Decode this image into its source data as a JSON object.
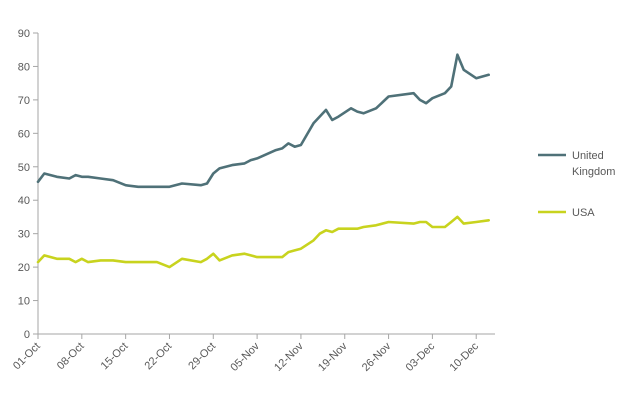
{
  "chart_data": {
    "type": "line",
    "title": "",
    "xlabel": "",
    "ylabel": "",
    "ylim": [
      0,
      90
    ],
    "yticks": [
      0,
      10,
      20,
      30,
      40,
      50,
      60,
      70,
      80,
      90
    ],
    "x_tick_labels": [
      "01-Oct",
      "08-Oct",
      "15-Oct",
      "22-Oct",
      "29-Oct",
      "05-Nov",
      "12-Nov",
      "19-Nov",
      "26-Nov",
      "03-Dec",
      "10-Dec"
    ],
    "grid": {
      "horizontal": false,
      "vertical": false
    },
    "legend_position": "right",
    "x": [
      "01-Oct",
      "02-Oct",
      "04-Oct",
      "06-Oct",
      "07-Oct",
      "08-Oct",
      "09-Oct",
      "11-Oct",
      "13-Oct",
      "15-Oct",
      "17-Oct",
      "20-Oct",
      "22-Oct",
      "24-Oct",
      "27-Oct",
      "28-Oct",
      "29-Oct",
      "30-Oct",
      "01-Nov",
      "03-Nov",
      "04-Nov",
      "05-Nov",
      "08-Nov",
      "09-Nov",
      "10-Nov",
      "11-Nov",
      "12-Nov",
      "14-Nov",
      "15-Nov",
      "16-Nov",
      "17-Nov",
      "18-Nov",
      "20-Nov",
      "21-Nov",
      "22-Nov",
      "24-Nov",
      "26-Nov",
      "30-Nov",
      "01-Dec",
      "02-Dec",
      "03-Dec",
      "05-Dec",
      "06-Dec",
      "07-Dec",
      "08-Dec",
      "10-Dec",
      "12-Dec"
    ],
    "series": [
      {
        "name": "United Kingdom",
        "color": "#4f7178",
        "values": [
          45.5,
          48,
          47,
          46.5,
          47.5,
          47,
          47,
          46.5,
          46,
          44.5,
          44,
          44,
          44,
          45,
          44.5,
          45,
          48,
          49.5,
          50.5,
          51,
          52,
          52.5,
          55,
          55.5,
          57,
          56,
          56.5,
          63,
          65,
          67,
          64,
          65,
          67.5,
          66.5,
          66,
          67.5,
          71,
          72,
          70,
          69,
          70.5,
          72,
          74,
          83.5,
          79,
          76.5,
          77.5
        ]
      },
      {
        "name": "USA",
        "color": "#c8d31e",
        "values": [
          21.5,
          23.5,
          22.5,
          22.5,
          21.5,
          22.5,
          21.5,
          22,
          22,
          21.5,
          21.5,
          21.5,
          20,
          22.5,
          21.5,
          22.5,
          24,
          22,
          23.5,
          24,
          23.5,
          23,
          23,
          23,
          24.5,
          25,
          25.5,
          28,
          30,
          31,
          30.5,
          31.5,
          31.5,
          31.5,
          32,
          32.5,
          33.5,
          33,
          33.5,
          33.5,
          32,
          32,
          33.5,
          35,
          33,
          33.5,
          34
        ]
      }
    ]
  }
}
